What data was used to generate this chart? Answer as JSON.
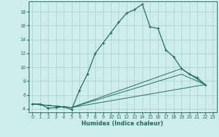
{
  "xlabel": "Humidex (Indice chaleur)",
  "bg_color": "#cdecea",
  "grid_color": "#a8d5d0",
  "line_color": "#1a6b60",
  "xlim": [
    -0.5,
    23.5
  ],
  "ylim": [
    3.5,
    19.5
  ],
  "xticks": [
    0,
    1,
    2,
    3,
    4,
    5,
    6,
    7,
    8,
    9,
    10,
    11,
    12,
    13,
    14,
    15,
    16,
    17,
    18,
    19,
    20,
    21,
    22,
    23
  ],
  "yticks": [
    4,
    6,
    8,
    10,
    12,
    14,
    16,
    18
  ],
  "main_series": {
    "x": [
      0,
      1,
      2,
      3,
      4,
      5,
      6,
      7,
      8,
      9,
      10,
      11,
      12,
      13,
      14,
      15,
      16,
      17,
      18,
      19,
      20,
      21,
      22
    ],
    "y": [
      4.7,
      4.7,
      4.1,
      4.2,
      4.3,
      3.9,
      6.7,
      9.0,
      12.0,
      13.5,
      15.0,
      16.5,
      17.8,
      18.3,
      19.1,
      15.8,
      15.6,
      12.5,
      11.5,
      9.8,
      9.0,
      8.5,
      7.5
    ]
  },
  "secondary_series": [
    {
      "x": [
        0,
        5,
        19,
        22
      ],
      "y": [
        4.7,
        4.2,
        9.8,
        7.5
      ]
    },
    {
      "x": [
        0,
        5,
        19,
        22
      ],
      "y": [
        4.7,
        4.2,
        9.0,
        7.5
      ]
    },
    {
      "x": [
        0,
        5,
        22
      ],
      "y": [
        4.7,
        4.2,
        7.5
      ]
    }
  ]
}
